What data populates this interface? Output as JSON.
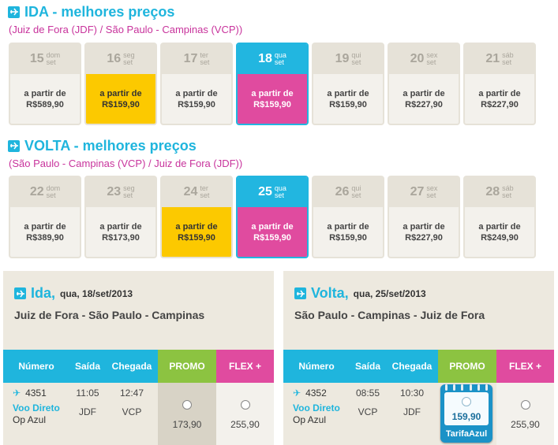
{
  "ida_section": {
    "title": "IDA - melhores preços",
    "route": "(Juiz de Fora (JDF) / São Paulo - Campinas (VCP))",
    "days": [
      {
        "num": "15",
        "wd1": "dom",
        "wd2": "set",
        "label": "a partir de",
        "price": "R$589,90",
        "style": "normal"
      },
      {
        "num": "16",
        "wd1": "seg",
        "wd2": "set",
        "label": "a partir de",
        "price": "R$159,90",
        "style": "yellow"
      },
      {
        "num": "17",
        "wd1": "ter",
        "wd2": "set",
        "label": "a partir de",
        "price": "R$159,90",
        "style": "normal"
      },
      {
        "num": "18",
        "wd1": "qua",
        "wd2": "set",
        "label": "a partir de",
        "price": "R$159,90",
        "style": "pink selected"
      },
      {
        "num": "19",
        "wd1": "qui",
        "wd2": "set",
        "label": "a partir de",
        "price": "R$159,90",
        "style": "normal"
      },
      {
        "num": "20",
        "wd1": "sex",
        "wd2": "set",
        "label": "a partir de",
        "price": "R$227,90",
        "style": "normal"
      },
      {
        "num": "21",
        "wd1": "sáb",
        "wd2": "set",
        "label": "a partir de",
        "price": "R$227,90",
        "style": "normal"
      }
    ]
  },
  "volta_section": {
    "title": "VOLTA - melhores preços",
    "route": "(São Paulo - Campinas (VCP) / Juiz de Fora (JDF))",
    "days": [
      {
        "num": "22",
        "wd1": "dom",
        "wd2": "set",
        "label": "a partir de",
        "price": "R$389,90",
        "style": "normal"
      },
      {
        "num": "23",
        "wd1": "seg",
        "wd2": "set",
        "label": "a partir de",
        "price": "R$173,90",
        "style": "normal"
      },
      {
        "num": "24",
        "wd1": "ter",
        "wd2": "set",
        "label": "a partir de",
        "price": "R$159,90",
        "style": "yellow"
      },
      {
        "num": "25",
        "wd1": "qua",
        "wd2": "set",
        "label": "a partir de",
        "price": "R$159,90",
        "style": "pink selected"
      },
      {
        "num": "26",
        "wd1": "qui",
        "wd2": "set",
        "label": "a partir de",
        "price": "R$159,90",
        "style": "normal"
      },
      {
        "num": "27",
        "wd1": "sex",
        "wd2": "set",
        "label": "a partir de",
        "price": "R$227,90",
        "style": "normal"
      },
      {
        "num": "28",
        "wd1": "sáb",
        "wd2": "set",
        "label": "a partir de",
        "price": "R$249,90",
        "style": "normal"
      }
    ]
  },
  "ida_panel": {
    "label": "Ida,",
    "date": "qua, 18/set/2013",
    "route": "Juiz de Fora - São Paulo - Campinas",
    "headers": {
      "numero": "Número",
      "saida": "Saída",
      "chegada": "Chegada",
      "promo": "PROMO",
      "flex": "FLEX +"
    },
    "flight": {
      "number": "4351",
      "type": "Voo Direto",
      "operator": "Op  Azul",
      "dep_time": "11:05",
      "arr_time": "12:47",
      "dep_airport": "JDF",
      "arr_airport": "VCP",
      "promo_price": "173,90",
      "flex_price": "255,90"
    }
  },
  "volta_panel": {
    "label": "Volta,",
    "date": "qua, 25/set/2013",
    "route": "São Paulo - Campinas - Juiz de Fora",
    "headers": {
      "numero": "Número",
      "saida": "Saída",
      "chegada": "Chegada",
      "promo": "PROMO",
      "flex": "FLEX +"
    },
    "flight": {
      "number": "4352",
      "type": "Voo Direto",
      "operator": "Op  Azul",
      "dep_time": "08:55",
      "arr_time": "10:30",
      "dep_airport": "VCP",
      "arr_airport": "JDF",
      "promo_price": "159,90",
      "promo_badge": "TarifaAzul",
      "flex_price": "255,90"
    }
  },
  "colors": {
    "accent_blue": "#1fb5dd",
    "route_magenta": "#c8339c",
    "promo_green": "#8cc341",
    "flex_pink": "#e04b9f",
    "best_yellow": "#fcc900"
  }
}
